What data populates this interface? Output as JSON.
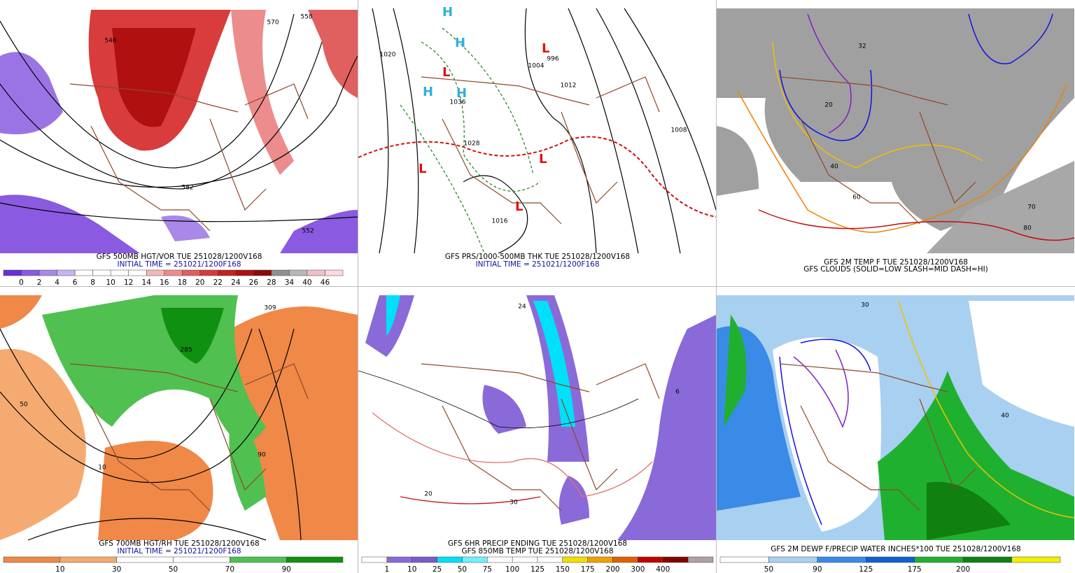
{
  "panels": [
    {
      "caption": "GFS 500MB HGT/VOR TUE 251028/1200V168",
      "subcaption": "INITIAL TIME = 251021/1200F168",
      "map_labels": [
        "546",
        "570",
        "558",
        "582",
        "552"
      ],
      "colorbar": {
        "labels": [
          0,
          2,
          4,
          6,
          8,
          10,
          12,
          14,
          16,
          18,
          20,
          22,
          24,
          26,
          28,
          34,
          40,
          46
        ],
        "colors": [
          "#6a2ed8",
          "#8a5ae0",
          "#a988e8",
          "#c8b4f0",
          "#ffffff",
          "#ffffff",
          "#ffffff",
          "#ffffff",
          "#f4b8b8",
          "#ec8c8c",
          "#e06060",
          "#d43c3c",
          "#c42020",
          "#b01010",
          "#900808",
          "#909090",
          "#b8b8b8",
          "#f0c0c8",
          "#ffd8e0"
        ]
      }
    },
    {
      "caption": "GFS PRS/1000-500MB THK TUE 251028/1200V168",
      "subcaption": "INITIAL TIME = 251021/1200F168",
      "map_labels": [
        "1020",
        "1012",
        "1008",
        "996",
        "1004",
        "1036",
        "1028",
        "1016",
        "L",
        "H"
      ]
    },
    {
      "caption": "GFS 2M TEMP F TUE 251028/1200V168",
      "subcaption": "GFS CLOUDS (SOLID=LOW SLASH=MID DASH=HI)",
      "map_labels": [
        "32",
        "20",
        "40",
        "60",
        "70",
        "80"
      ]
    },
    {
      "caption": "GFS 700MB HGT/RH TUE 251028/1200V168",
      "subcaption": "INITIAL TIME = 251021/1200F168",
      "map_labels": [
        "50",
        "10",
        "90",
        "309",
        "285"
      ],
      "colorbar": {
        "labels": [
          10,
          30,
          50,
          70,
          90
        ],
        "colors": [
          "#f08848",
          "#f4aa70",
          "#ffffff",
          "#ffffff",
          "#50c050",
          "#109010"
        ]
      }
    },
    {
      "caption": "GFS 6HR PRECIP ENDING TUE 251028/1200V168",
      "subcaption": "GFS 850MB TEMP TUE 251028/1200V168",
      "map_labels": [
        "24",
        "6",
        "20",
        "30"
      ],
      "colorbar": {
        "labels": [
          1,
          10,
          25,
          50,
          75,
          100,
          125,
          150,
          175,
          200,
          300,
          400
        ],
        "colors": [
          "#ffffff",
          "#8a6ad8",
          "#7a5ac8",
          "#00e0f8",
          "#70f0ff",
          "#ffffff",
          "#ffffff",
          "#ffffff",
          "#f0e000",
          "#f0a000",
          "#e06000",
          "#c00000",
          "#800000",
          "#b0a0a0"
        ]
      }
    },
    {
      "caption": "GFS 2M DEWP F/PRECIP WATER INCHES*100 TUE 251028/1200V168",
      "map_labels": [
        "30",
        "40"
      ],
      "colorbar": {
        "labels": [
          50,
          90,
          125,
          175,
          200
        ],
        "colors": [
          "#ffffff",
          "#a8d0f0",
          "#3a8ae8",
          "#1060d0",
          "#20b030",
          "#108010",
          "#f0f000"
        ]
      }
    }
  ]
}
